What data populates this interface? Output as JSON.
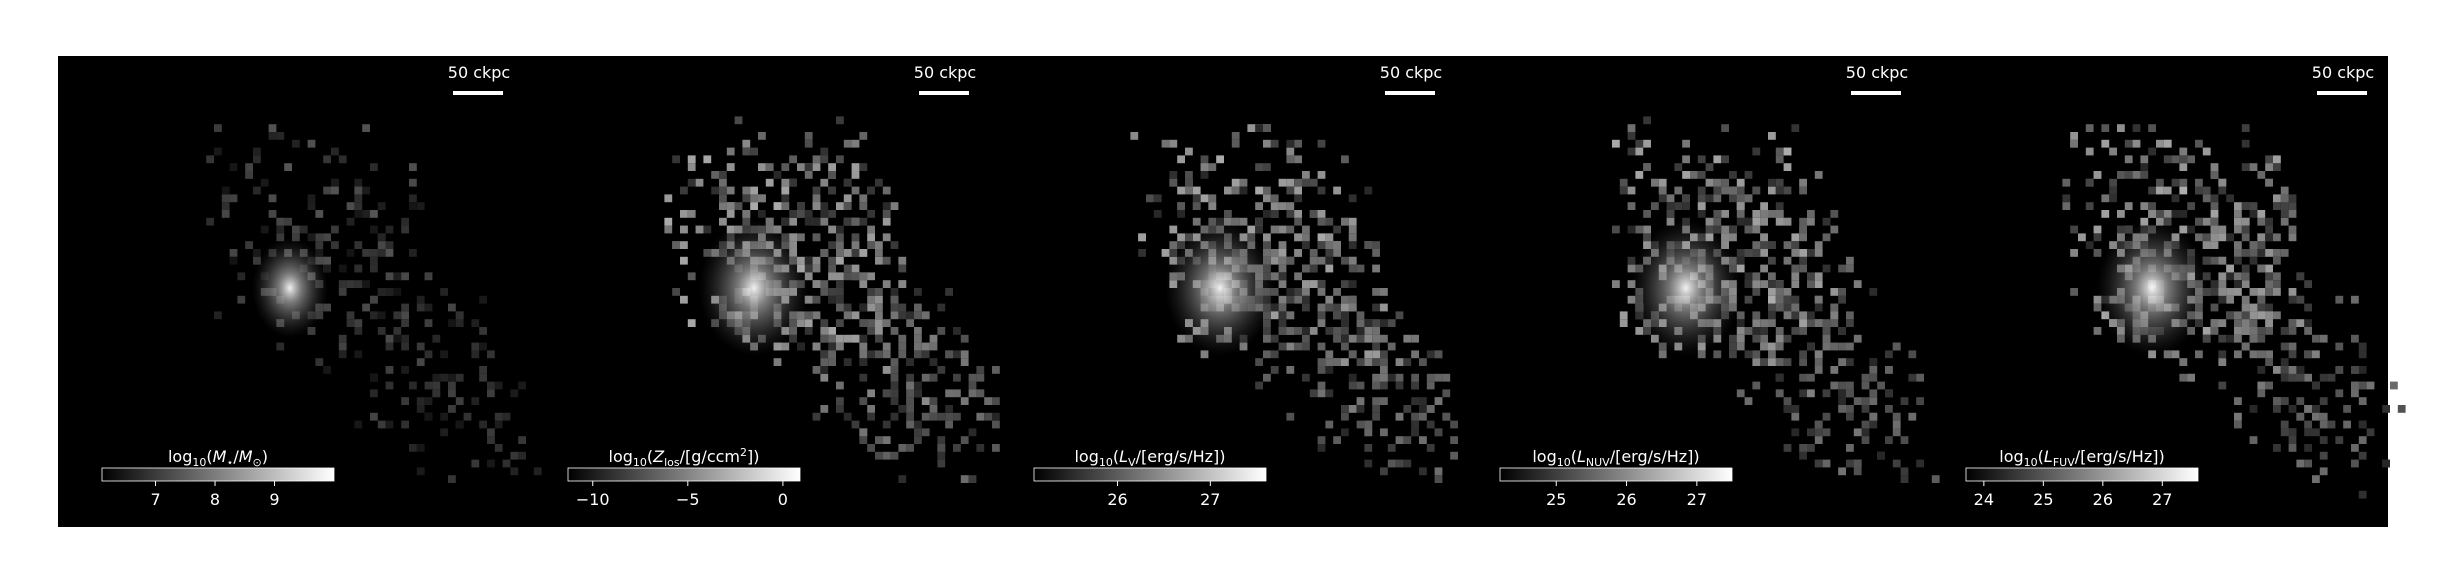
{
  "chart_data": [
    {
      "type": "image",
      "cmap": "gray",
      "scalebar_label": "50 ckpc",
      "colorbar_label": [
        {
          "text": "log"
        },
        {
          "text": "10",
          "sub": true
        },
        {
          "text": "("
        },
        {
          "text": "M",
          "italic": true
        },
        {
          "text": "⋆",
          "sub": true
        },
        {
          "text": "/"
        },
        {
          "text": "M",
          "italic": true
        },
        {
          "text": "⊙",
          "sub": true
        },
        {
          "text": ")"
        }
      ],
      "clim": [
        6.1,
        10.0
      ],
      "cticks": [
        7,
        8,
        9
      ]
    },
    {
      "type": "image",
      "cmap": "gray",
      "scalebar_label": "50 ckpc",
      "colorbar_label": [
        {
          "text": "log"
        },
        {
          "text": "10",
          "sub": true
        },
        {
          "text": "("
        },
        {
          "text": "Z",
          "italic": true
        },
        {
          "text": "los",
          "sub": true
        },
        {
          "text": "/[g/ccm"
        },
        {
          "text": "2",
          "sup": true
        },
        {
          "text": "])"
        }
      ],
      "clim": [
        -11.3,
        0.9
      ],
      "cticks": [
        {
          "value": -10,
          "label": "−10"
        },
        {
          "value": -5,
          "label": "−5"
        },
        0
      ]
    },
    {
      "type": "image",
      "cmap": "gray",
      "scalebar_label": "50 ckpc",
      "colorbar_label": [
        {
          "text": "log"
        },
        {
          "text": "10",
          "sub": true
        },
        {
          "text": "("
        },
        {
          "text": "L",
          "italic": true
        },
        {
          "text": "V",
          "sub": true
        },
        {
          "text": "/[erg/s/Hz])"
        }
      ],
      "clim": [
        25.1,
        27.6
      ],
      "cticks": [
        26,
        27
      ]
    },
    {
      "type": "image",
      "cmap": "gray",
      "scalebar_label": "50 ckpc",
      "colorbar_label": [
        {
          "text": "log"
        },
        {
          "text": "10",
          "sub": true
        },
        {
          "text": "("
        },
        {
          "text": "L",
          "italic": true
        },
        {
          "text": "NUV",
          "sub": true
        },
        {
          "text": "/[erg/s/Hz])"
        }
      ],
      "clim": [
        24.2,
        27.5
      ],
      "cticks": [
        25,
        26,
        27
      ]
    },
    {
      "type": "image",
      "cmap": "gray",
      "scalebar_label": "50 ckpc",
      "colorbar_label": [
        {
          "text": "log"
        },
        {
          "text": "10",
          "sub": true
        },
        {
          "text": "("
        },
        {
          "text": "L",
          "italic": true
        },
        {
          "text": "FUV",
          "sub": true
        },
        {
          "text": "/[erg/s/Hz])"
        }
      ],
      "clim": [
        23.7,
        27.6
      ],
      "cticks": [
        24,
        25,
        26,
        27
      ]
    }
  ]
}
